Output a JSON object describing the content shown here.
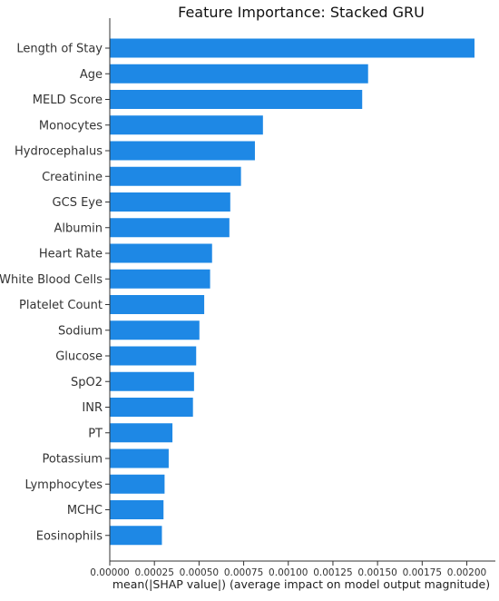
{
  "chart_data": {
    "type": "bar",
    "orientation": "horizontal",
    "title": "Feature Importance: Stacked GRU",
    "xlabel": "mean(|SHAP value|) (average impact on model output magnitude)",
    "ylabel": "",
    "categories": [
      "Length of Stay",
      "Age",
      "MELD Score",
      "Monocytes",
      "Hydrocephalus",
      "Creatinine",
      "GCS Eye",
      "Albumin",
      "Heart Rate",
      "White Blood Cells",
      "Platelet Count",
      "Sodium",
      "Glucose",
      "SpO2",
      "INR",
      "PT",
      "Potassium",
      "Lymphocytes",
      "MCHC",
      "Eosinophils"
    ],
    "values": [
      0.002043,
      0.001447,
      0.001414,
      0.000858,
      0.000813,
      0.000735,
      0.000675,
      0.00067,
      0.000573,
      0.000562,
      0.000529,
      0.000502,
      0.000484,
      0.000472,
      0.000466,
      0.000351,
      0.00033,
      0.000307,
      0.000301,
      0.000292
    ],
    "xlim": [
      0,
      0.00216
    ],
    "xticks": [
      0,
      0.00025,
      0.0005,
      0.00075,
      0.001,
      0.00125,
      0.0015,
      0.00175,
      0.002
    ],
    "xtick_labels": [
      "0.00000",
      "0.00025",
      "0.00050",
      "0.00075",
      "0.00100",
      "0.00125",
      "0.00150",
      "0.00175",
      "0.00200"
    ],
    "bar_color": "#1e88e5",
    "grid": false,
    "legend": "none"
  }
}
